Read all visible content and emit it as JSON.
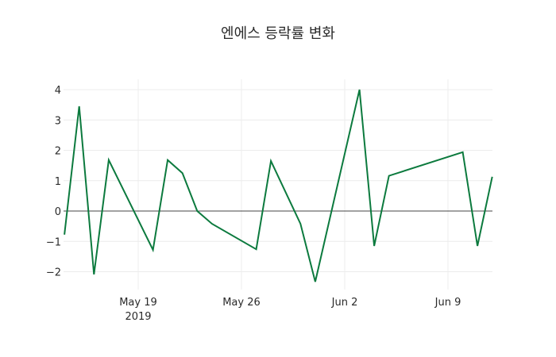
{
  "chart_data": {
    "type": "line",
    "title": "엔에스 등락률 변화",
    "xlabel": "",
    "ylabel": "",
    "x": [
      "2019-05-14",
      "2019-05-15",
      "2019-05-16",
      "2019-05-17",
      "2019-05-20",
      "2019-05-21",
      "2019-05-22",
      "2019-05-23",
      "2019-05-24",
      "2019-05-27",
      "2019-05-28",
      "2019-05-30",
      "2019-05-31",
      "2019-06-03",
      "2019-06-04",
      "2019-06-05",
      "2019-06-10",
      "2019-06-11",
      "2019-06-12"
    ],
    "series": [
      {
        "name": "등락률",
        "color": "#0c7a3e",
        "values": [
          -0.78,
          3.45,
          -2.09,
          1.68,
          -1.28,
          1.68,
          1.25,
          0.0,
          -0.42,
          -1.26,
          1.65,
          -0.42,
          -2.33,
          4.0,
          -1.15,
          1.16,
          1.94,
          -1.15,
          1.13
        ]
      }
    ],
    "ylim": [
      -2.5,
      4.35
    ],
    "yticks": [
      4,
      3,
      2,
      1,
      0,
      -1,
      -2
    ],
    "ytick_labels": [
      "4",
      "3",
      "2",
      "1",
      "0",
      "−1",
      "−2"
    ],
    "xticks": [
      "2019-05-19",
      "2019-05-26",
      "2019-06-02",
      "2019-06-09"
    ],
    "xtick_labels": [
      "May 19",
      "May 26",
      "Jun 2",
      "Jun 9"
    ],
    "xtick_year_label": "2019",
    "grid": true,
    "zeroline": true,
    "legend": false
  }
}
